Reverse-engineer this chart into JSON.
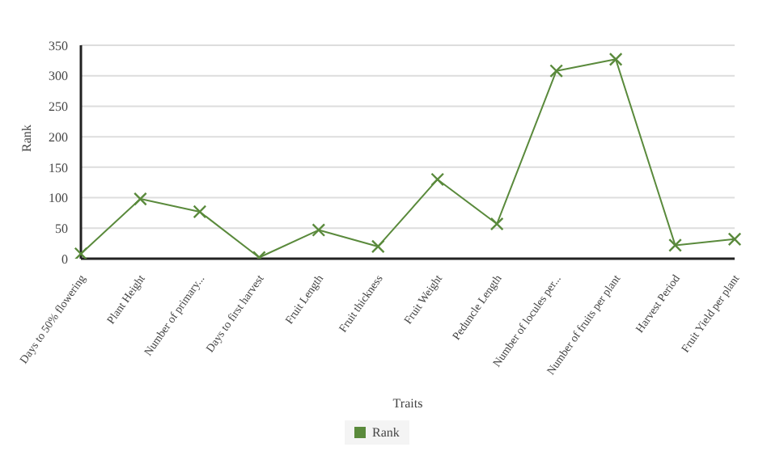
{
  "chart_data": {
    "type": "line",
    "xlabel": "Traits",
    "ylabel": "Rank",
    "categories": [
      "Days to 50% flowering",
      "Plant Height",
      "Number of primary...",
      "Days to first harvest",
      "Fruit Length",
      "Fruit thickness",
      "Fruit Weight",
      "Peduncle Length",
      "Number of locules per...",
      "Number of fruits per plant",
      "Harvest Period",
      "Fruit Yield per plant"
    ],
    "series": [
      {
        "name": "Rank",
        "color": "#5a8a3c",
        "values": [
          8,
          98,
          77,
          2,
          47,
          20,
          130,
          57,
          308,
          327,
          22,
          32
        ]
      }
    ],
    "ylim": [
      0,
      350
    ],
    "yticks": [
      0,
      50,
      100,
      150,
      200,
      250,
      300,
      350
    ],
    "grid": "y",
    "legend": "bottom",
    "marker": "cross",
    "line_style": "solid"
  }
}
